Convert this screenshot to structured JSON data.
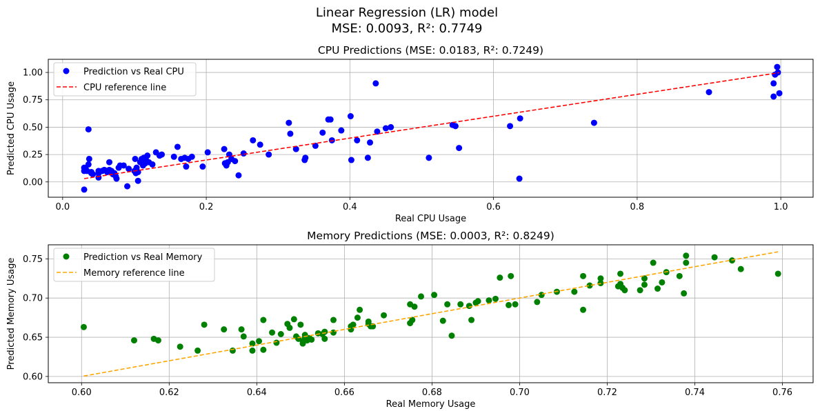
{
  "figure": {
    "title_line1": "Linear Regression (LR) model",
    "title_line2": "MSE: 0.0093, R²: 0.7749"
  },
  "chart_data": [
    {
      "type": "scatter",
      "title": "CPU Predictions (MSE: 0.0183, R²: 0.7249)",
      "xlabel": "Real CPU Usage",
      "ylabel": "Predicted CPU Usage",
      "xlim": [
        -0.02,
        1.045
      ],
      "ylim": [
        -0.14,
        1.12
      ],
      "xticks": [
        0.0,
        0.2,
        0.4,
        0.6,
        0.8,
        1.0
      ],
      "xtick_labels": [
        "0.0",
        "0.2",
        "0.4",
        "0.6",
        "0.8",
        "1.0"
      ],
      "yticks": [
        0.0,
        0.25,
        0.5,
        0.75,
        1.0
      ],
      "ytick_labels": [
        "0.00",
        "0.25",
        "0.50",
        "0.75",
        "1.00"
      ],
      "grid": true,
      "legend_position": "upper-left",
      "series": [
        {
          "name": "Prediction vs Real CPU",
          "kind": "points",
          "color": "#0000ff",
          "points": [
            [
              0.03,
              0.13
            ],
            [
              0.03,
              0.1
            ],
            [
              0.03,
              -0.07
            ],
            [
              0.032,
              0.12
            ],
            [
              0.034,
              0.1
            ],
            [
              0.036,
              0.48
            ],
            [
              0.036,
              0.16
            ],
            [
              0.037,
              0.21
            ],
            [
              0.04,
              0.09
            ],
            [
              0.04,
              0.08
            ],
            [
              0.042,
              0.07
            ],
            [
              0.05,
              0.08
            ],
            [
              0.05,
              0.04
            ],
            [
              0.05,
              0.1
            ],
            [
              0.055,
              0.1
            ],
            [
              0.058,
              0.11
            ],
            [
              0.062,
              0.09
            ],
            [
              0.065,
              0.1
            ],
            [
              0.065,
              0.11
            ],
            [
              0.065,
              0.18
            ],
            [
              0.068,
              0.1
            ],
            [
              0.07,
              0.07
            ],
            [
              0.072,
              0.08
            ],
            [
              0.074,
              0.05
            ],
            [
              0.075,
              0.03
            ],
            [
              0.078,
              0.13
            ],
            [
              0.08,
              0.15
            ],
            [
              0.085,
              0.15
            ],
            [
              0.09,
              -0.04
            ],
            [
              0.092,
              0.12
            ],
            [
              0.1,
              0.1
            ],
            [
              0.101,
              0.21
            ],
            [
              0.102,
              0.08
            ],
            [
              0.103,
              0.13
            ],
            [
              0.105,
              0.09
            ],
            [
              0.105,
              0.01
            ],
            [
              0.108,
              0.18
            ],
            [
              0.11,
              0.21
            ],
            [
              0.112,
              0.15
            ],
            [
              0.113,
              0.22
            ],
            [
              0.115,
              0.17
            ],
            [
              0.116,
              0.2
            ],
            [
              0.118,
              0.24
            ],
            [
              0.12,
              0.18
            ],
            [
              0.125,
              0.16
            ],
            [
              0.13,
              0.27
            ],
            [
              0.135,
              0.24
            ],
            [
              0.138,
              0.25
            ],
            [
              0.155,
              0.23
            ],
            [
              0.16,
              0.32
            ],
            [
              0.165,
              0.21
            ],
            [
              0.17,
              0.22
            ],
            [
              0.172,
              0.14
            ],
            [
              0.175,
              0.21
            ],
            [
              0.18,
              0.23
            ],
            [
              0.195,
              0.14
            ],
            [
              0.202,
              0.27
            ],
            [
              0.225,
              0.3
            ],
            [
              0.226,
              0.17
            ],
            [
              0.228,
              0.15
            ],
            [
              0.23,
              0.18
            ],
            [
              0.232,
              0.25
            ],
            [
              0.235,
              0.21
            ],
            [
              0.24,
              0.19
            ],
            [
              0.245,
              0.06
            ],
            [
              0.252,
              0.26
            ],
            [
              0.265,
              0.38
            ],
            [
              0.275,
              0.34
            ],
            [
              0.287,
              0.25
            ],
            [
              0.315,
              0.54
            ],
            [
              0.317,
              0.44
            ],
            [
              0.325,
              0.3
            ],
            [
              0.337,
              0.2
            ],
            [
              0.338,
              0.22
            ],
            [
              0.352,
              0.33
            ],
            [
              0.362,
              0.45
            ],
            [
              0.37,
              0.57
            ],
            [
              0.373,
              0.57
            ],
            [
              0.375,
              0.38
            ],
            [
              0.388,
              0.47
            ],
            [
              0.401,
              0.6
            ],
            [
              0.402,
              0.2
            ],
            [
              0.41,
              0.38
            ],
            [
              0.425,
              0.22
            ],
            [
              0.428,
              0.36
            ],
            [
              0.436,
              0.9
            ],
            [
              0.438,
              0.46
            ],
            [
              0.45,
              0.49
            ],
            [
              0.457,
              0.5
            ],
            [
              0.51,
              0.22
            ],
            [
              0.543,
              0.52
            ],
            [
              0.547,
              0.51
            ],
            [
              0.552,
              0.31
            ],
            [
              0.623,
              0.51
            ],
            [
              0.637,
              0.58
            ],
            [
              0.636,
              0.03
            ],
            [
              0.74,
              0.54
            ],
            [
              0.9,
              0.82
            ],
            [
              0.99,
              0.78
            ],
            [
              0.99,
              0.9
            ],
            [
              0.992,
              0.98
            ],
            [
              0.995,
              1.05
            ],
            [
              0.996,
              1.0
            ],
            [
              0.998,
              0.81
            ]
          ]
        },
        {
          "name": "CPU reference line",
          "kind": "line",
          "color": "#ff0000",
          "dash": "dashed",
          "points": [
            [
              0.03,
              0.03
            ],
            [
              0.998,
              0.998
            ]
          ]
        }
      ]
    },
    {
      "type": "scatter",
      "title": "Memory Predictions (MSE: 0.0003, R²: 0.8249)",
      "xlabel": "Real Memory Usage",
      "ylabel": "Predicted Memory Usage",
      "xlim": [
        0.5924,
        0.767
      ],
      "ylim": [
        0.592,
        0.7679
      ],
      "xticks": [
        0.6,
        0.62,
        0.64,
        0.66,
        0.68,
        0.7,
        0.72,
        0.74,
        0.76
      ],
      "xtick_labels": [
        "0.60",
        "0.62",
        "0.64",
        "0.66",
        "0.68",
        "0.70",
        "0.72",
        "0.74",
        "0.76"
      ],
      "yticks": [
        0.6,
        0.65,
        0.7,
        0.75
      ],
      "ytick_labels": [
        "0.60",
        "0.65",
        "0.70",
        "0.75"
      ],
      "grid": true,
      "legend_position": "upper-left",
      "series": [
        {
          "name": "Prediction vs Real Memory",
          "kind": "points",
          "color": "#008000",
          "points": [
            [
              0.6005,
              0.663
            ],
            [
              0.612,
              0.646
            ],
            [
              0.6165,
              0.648
            ],
            [
              0.6175,
              0.646
            ],
            [
              0.6225,
              0.638
            ],
            [
              0.6265,
              0.633
            ],
            [
              0.628,
              0.666
            ],
            [
              0.6325,
              0.66
            ],
            [
              0.6345,
              0.633
            ],
            [
              0.6365,
              0.66
            ],
            [
              0.637,
              0.651
            ],
            [
              0.639,
              0.642
            ],
            [
              0.639,
              0.633
            ],
            [
              0.6405,
              0.645
            ],
            [
              0.6415,
              0.672
            ],
            [
              0.6415,
              0.634
            ],
            [
              0.6435,
              0.656
            ],
            [
              0.6445,
              0.643
            ],
            [
              0.6455,
              0.654
            ],
            [
              0.647,
              0.667
            ],
            [
              0.6475,
              0.662
            ],
            [
              0.6485,
              0.673
            ],
            [
              0.649,
              0.651
            ],
            [
              0.6495,
              0.648
            ],
            [
              0.65,
              0.666
            ],
            [
              0.6505,
              0.645
            ],
            [
              0.6505,
              0.642
            ],
            [
              0.651,
              0.653
            ],
            [
              0.651,
              0.649
            ],
            [
              0.6515,
              0.646
            ],
            [
              0.652,
              0.649
            ],
            [
              0.6525,
              0.647
            ],
            [
              0.654,
              0.655
            ],
            [
              0.655,
              0.654
            ],
            [
              0.6555,
              0.648
            ],
            [
              0.6555,
              0.657
            ],
            [
              0.6575,
              0.656
            ],
            [
              0.6575,
              0.672
            ],
            [
              0.6615,
              0.664
            ],
            [
              0.6615,
              0.66
            ],
            [
              0.662,
              0.666
            ],
            [
              0.663,
              0.675
            ],
            [
              0.6635,
              0.685
            ],
            [
              0.6655,
              0.67
            ],
            [
              0.6655,
              0.667
            ],
            [
              0.666,
              0.664
            ],
            [
              0.6665,
              0.664
            ],
            [
              0.669,
              0.678
            ],
            [
              0.675,
              0.668
            ],
            [
              0.675,
              0.692
            ],
            [
              0.6755,
              0.672
            ],
            [
              0.676,
              0.689
            ],
            [
              0.6775,
              0.702
            ],
            [
              0.6805,
              0.704
            ],
            [
              0.6825,
              0.671
            ],
            [
              0.6835,
              0.692
            ],
            [
              0.6845,
              0.652
            ],
            [
              0.6865,
              0.692
            ],
            [
              0.6885,
              0.69
            ],
            [
              0.689,
              0.672
            ],
            [
              0.69,
              0.694
            ],
            [
              0.6905,
              0.696
            ],
            [
              0.693,
              0.697
            ],
            [
              0.6945,
              0.699
            ],
            [
              0.6955,
              0.726
            ],
            [
              0.6975,
              0.691
            ],
            [
              0.698,
              0.728
            ],
            [
              0.699,
              0.692
            ],
            [
              0.704,
              0.695
            ],
            [
              0.705,
              0.704
            ],
            [
              0.7085,
              0.708
            ],
            [
              0.7125,
              0.708
            ],
            [
              0.7145,
              0.728
            ],
            [
              0.7145,
              0.685
            ],
            [
              0.716,
              0.716
            ],
            [
              0.7185,
              0.719
            ],
            [
              0.7185,
              0.725
            ],
            [
              0.7225,
              0.715
            ],
            [
              0.723,
              0.731
            ],
            [
              0.723,
              0.718
            ],
            [
              0.7235,
              0.713
            ],
            [
              0.724,
              0.71
            ],
            [
              0.7275,
              0.71
            ],
            [
              0.7285,
              0.725
            ],
            [
              0.7285,
              0.717
            ],
            [
              0.7305,
              0.745
            ],
            [
              0.7315,
              0.712
            ],
            [
              0.7325,
              0.72
            ],
            [
              0.7335,
              0.733
            ],
            [
              0.7365,
              0.728
            ],
            [
              0.7375,
              0.706
            ],
            [
              0.738,
              0.754
            ],
            [
              0.738,
              0.745
            ],
            [
              0.7445,
              0.752
            ],
            [
              0.7485,
              0.748
            ],
            [
              0.7505,
              0.737
            ],
            [
              0.759,
              0.731
            ]
          ]
        },
        {
          "name": "Memory reference line",
          "kind": "line",
          "color": "#ffa500",
          "dash": "dashed",
          "points": [
            [
              0.6005,
              0.6005
            ],
            [
              0.759,
              0.759
            ]
          ]
        }
      ]
    }
  ]
}
